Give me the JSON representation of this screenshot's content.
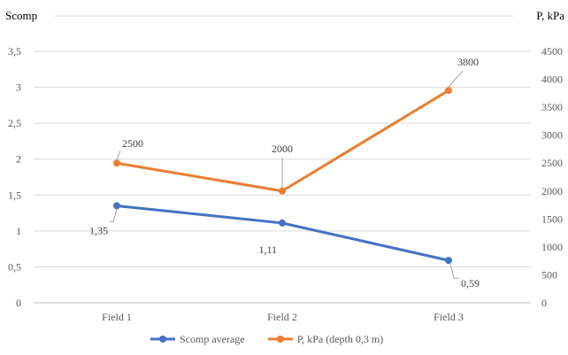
{
  "chart_data": {
    "type": "line",
    "categories": [
      "Field 1",
      "Field 2",
      "Field 3"
    ],
    "y_left": {
      "label": "Scomp",
      "range": [
        0,
        3.5
      ],
      "ticks": [
        0,
        0.5,
        1,
        1.5,
        2,
        2.5,
        3,
        3.5
      ],
      "tick_labels": [
        "0",
        "0,5",
        "1",
        "1,5",
        "2",
        "2,5",
        "3",
        "3,5"
      ]
    },
    "y_right": {
      "label": "P, kPa",
      "range": [
        0,
        4500
      ],
      "ticks": [
        0,
        500,
        1000,
        1500,
        2000,
        2500,
        3000,
        3500,
        4000,
        4500
      ],
      "tick_labels": [
        "0",
        "500",
        "1000",
        "1500",
        "2000",
        "2500",
        "3000",
        "3500",
        "4000",
        "4500"
      ]
    },
    "series": [
      {
        "name": "Scomp average",
        "axis": "left",
        "color": "#4472C4",
        "values": [
          1.35,
          1.11,
          0.59
        ],
        "data_labels": [
          "1,35",
          "1,11",
          "0,59"
        ]
      },
      {
        "name": "P, kPa (depth 0,3 m)",
        "axis": "right",
        "color": "#ED7D31",
        "values": [
          2500,
          2000,
          3800
        ],
        "data_labels": [
          "2500",
          "2000",
          "3800"
        ]
      }
    ],
    "grid": "horizontal",
    "legend_position": "bottom"
  }
}
